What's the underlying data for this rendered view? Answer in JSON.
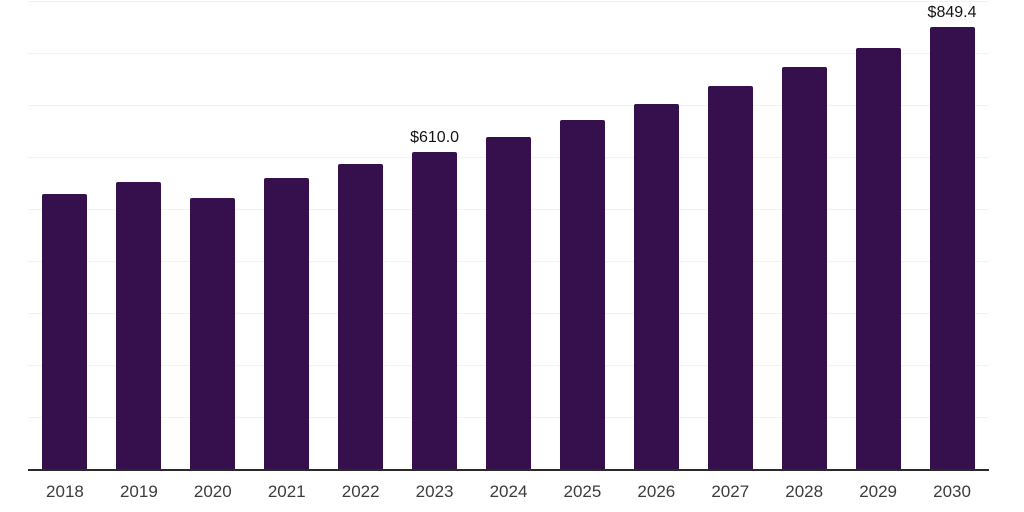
{
  "chart": {
    "background_color": "#ffffff",
    "bar_color": "#36104D",
    "grid_color": "#f2f2f4",
    "axis_line_color": "#2a2a2a",
    "tick_label_color": "#3c3c3c",
    "data_label_color": "#141414"
  },
  "chart_data": {
    "type": "bar",
    "title": "",
    "xlabel": "",
    "ylabel": "",
    "legend": "none",
    "y_axis_labels_visible": false,
    "grid": true,
    "ylim": [
      0,
      902
    ],
    "gridline_values": [
      100,
      200,
      300,
      400,
      500,
      600,
      700,
      800,
      900
    ],
    "categories": [
      "2018",
      "2019",
      "2020",
      "2021",
      "2022",
      "2023",
      "2024",
      "2025",
      "2026",
      "2027",
      "2028",
      "2029",
      "2030"
    ],
    "values": [
      529,
      552,
      522,
      560,
      586,
      610.0,
      639.5,
      670.5,
      702.9,
      736.9,
      772.6,
      810.0,
      849.4
    ],
    "points": [
      {
        "year": "2018",
        "value": 529
      },
      {
        "year": "2019",
        "value": 552
      },
      {
        "year": "2020",
        "value": 522
      },
      {
        "year": "2021",
        "value": 560
      },
      {
        "year": "2022",
        "value": 586
      },
      {
        "year": "2023",
        "value": 610.0,
        "label": "$610.0"
      },
      {
        "year": "2024",
        "value": 639.5
      },
      {
        "year": "2025",
        "value": 670.5
      },
      {
        "year": "2026",
        "value": 702.9
      },
      {
        "year": "2027",
        "value": 736.9
      },
      {
        "year": "2028",
        "value": 772.6
      },
      {
        "year": "2029",
        "value": 810.0
      },
      {
        "year": "2030",
        "value": 849.4,
        "label": "$849.4"
      }
    ]
  }
}
